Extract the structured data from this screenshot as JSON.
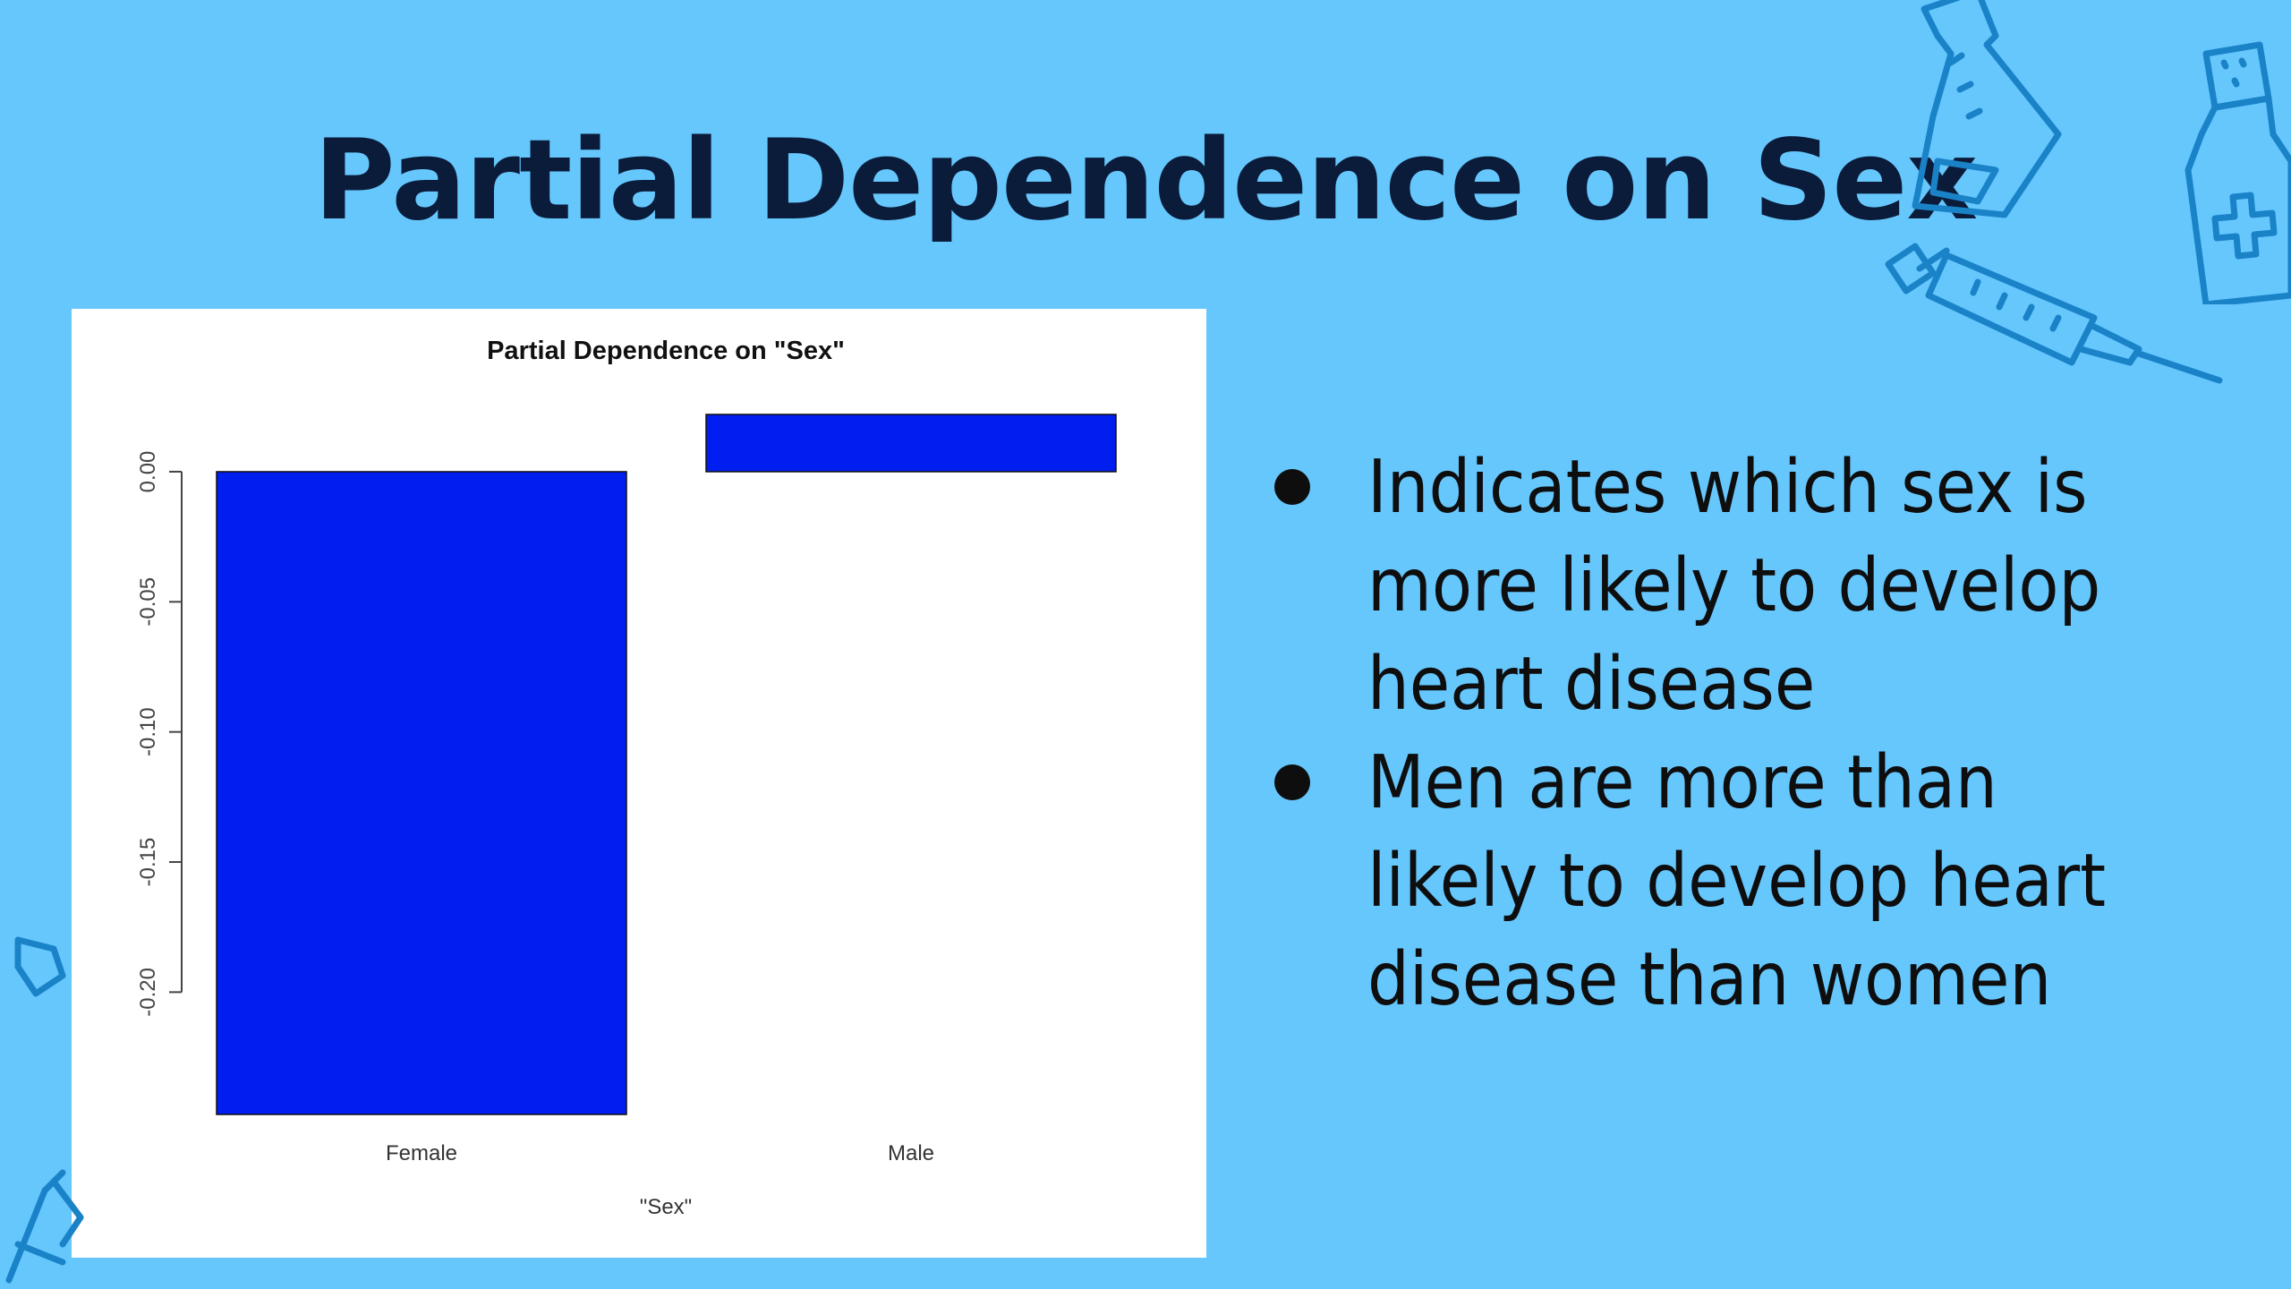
{
  "slide": {
    "title": "Partial Dependence on Sex",
    "bullets": [
      "Indicates which sex is more likely to develop heart disease",
      "Men are more than likely to develop heart disease than women"
    ]
  },
  "colors": {
    "background": "#66c7fd",
    "bar": "#001ef0",
    "title": "#0b1c3a",
    "decoration": "#1a83c8"
  },
  "decorations": [
    "flask-icon",
    "medicine-bottle-icon",
    "syringe-icon",
    "bottle-icon"
  ],
  "chart_data": {
    "type": "bar",
    "title": "Partial Dependence on \"Sex\"",
    "xlabel": "\"Sex\"",
    "ylabel": "",
    "categories": [
      "Female",
      "Male"
    ],
    "values": [
      -0.247,
      0.022
    ],
    "yticks": [
      0.0,
      -0.05,
      -0.1,
      -0.15,
      -0.2
    ],
    "ytick_labels": [
      "0.00",
      "-0.05",
      "-0.10",
      "-0.15",
      "-0.20"
    ],
    "ylim": [
      -0.247,
      0.022
    ],
    "grid": false,
    "legend": "none"
  }
}
